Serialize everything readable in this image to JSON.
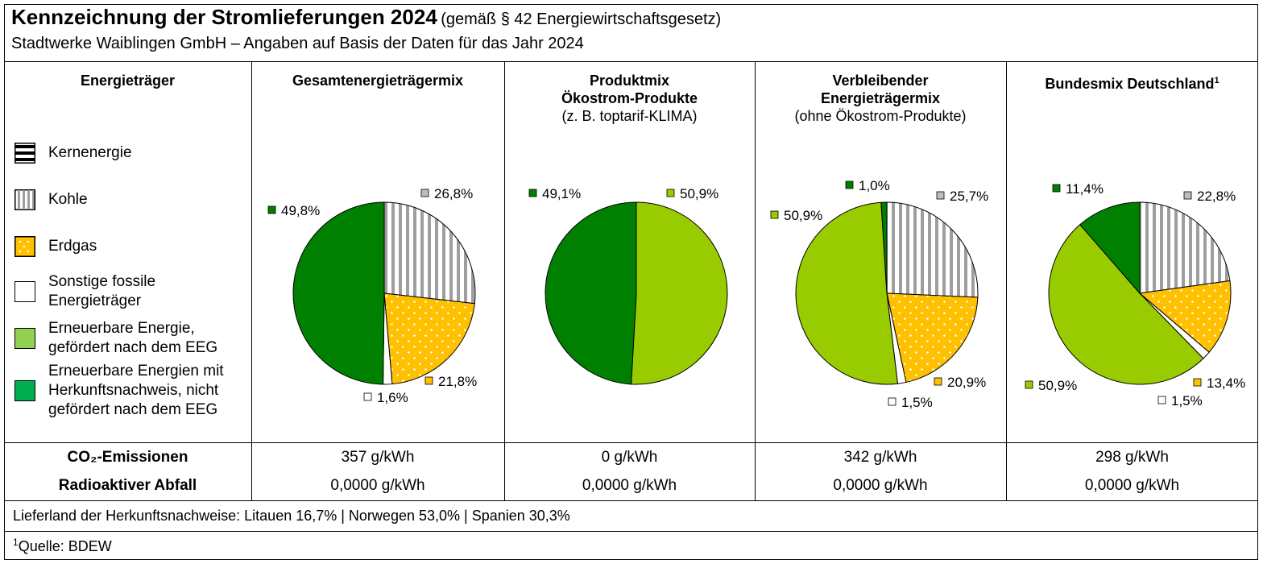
{
  "title": "Kennzeichnung der Stromlieferungen 2024",
  "title_note": "(gemäß § 42 Energiewirtschaftsgesetz)",
  "subtitle": "Stadtwerke Waiblingen GmbH – Angaben auf Basis der Daten für das Jahr 2024",
  "legend_header": "Energieträger",
  "legend": [
    {
      "label": "Kernenergie",
      "pattern": "horizontal-stripes",
      "color": "#000000"
    },
    {
      "label": "Kohle",
      "pattern": "vertical-stripes",
      "color": "#9e9e9e"
    },
    {
      "label": "Erdgas",
      "pattern": "dots",
      "color": "#ffc000"
    },
    {
      "label": "Sonstige fossile Energieträger",
      "pattern": "solid",
      "color": "#ffffff"
    },
    {
      "label": "Erneuerbare Energie, gefördert nach dem EEG",
      "pattern": "solid",
      "color": "#99cc00"
    },
    {
      "label": "Erneuerbare Energien mit Herkunftsnachweis, nicht gefördert nach dem EEG",
      "pattern": "solid",
      "color": "#008000"
    }
  ],
  "columns": [
    {
      "line1": "Gesamtenergieträgermix",
      "line2": "",
      "line3": "",
      "co2": "357 g/kWh",
      "waste": "0,0000 g/kWh"
    },
    {
      "line1": "Produktmix",
      "line2": "Ökostrom-Produkte",
      "line3": "(z. B. toptarif-KLIMA)",
      "co2": "0 g/kWh",
      "waste": "0,0000 g/kWh"
    },
    {
      "line1": "Verbleibender",
      "line2": "Energieträgermix",
      "line3": "(ohne Ökostrom-Produkte)",
      "co2": "342 g/kWh",
      "waste": "0,0000 g/kWh"
    },
    {
      "line1": "Bundesmix Deutschland",
      "line1_sup": "1",
      "line2": "",
      "line3": "",
      "co2": "298 g/kWh",
      "waste": "0,0000 g/kWh"
    }
  ],
  "row_labels": {
    "co2": "CO₂-Emissionen",
    "waste": "Radioaktiver Abfall"
  },
  "origin_note": "Lieferland der Herkunftsnachweise: Litauen 16,7% | Norwegen 53,0% | Spanien 30,3%",
  "source_sup": "1",
  "source_note": "Quelle: BDEW",
  "chart_data": [
    {
      "type": "pie",
      "title": "Gesamtenergieträgermix",
      "slices": [
        {
          "category": "Kohle",
          "value": 26.8,
          "label": "26,8%"
        },
        {
          "category": "Erdgas",
          "value": 21.8,
          "label": "21,8%"
        },
        {
          "category": "Sonstige fossile Energieträger",
          "value": 1.6,
          "label": "1,6%"
        },
        {
          "category": "Erneuerbare Energien mit Herkunftsnachweis, nicht gefördert nach dem EEG",
          "value": 49.8,
          "label": "49,8%"
        }
      ]
    },
    {
      "type": "pie",
      "title": "Produktmix Ökostrom-Produkte",
      "slices": [
        {
          "category": "Erneuerbare Energie, gefördert nach dem EEG",
          "value": 50.9,
          "label": "50,9%"
        },
        {
          "category": "Erneuerbare Energien mit Herkunftsnachweis, nicht gefördert nach dem EEG",
          "value": 49.1,
          "label": "49,1%"
        }
      ]
    },
    {
      "type": "pie",
      "title": "Verbleibender Energieträgermix",
      "slices": [
        {
          "category": "Kohle",
          "value": 25.7,
          "label": "25,7%"
        },
        {
          "category": "Erdgas",
          "value": 20.9,
          "label": "20,9%"
        },
        {
          "category": "Sonstige fossile Energieträger",
          "value": 1.5,
          "label": "1,5%"
        },
        {
          "category": "Erneuerbare Energie, gefördert nach dem EEG",
          "value": 50.9,
          "label": "50,9%"
        },
        {
          "category": "Erneuerbare Energien mit Herkunftsnachweis, nicht gefördert nach dem EEG",
          "value": 1.0,
          "label": "1,0%"
        }
      ]
    },
    {
      "type": "pie",
      "title": "Bundesmix Deutschland",
      "slices": [
        {
          "category": "Kohle",
          "value": 22.8,
          "label": "22,8%"
        },
        {
          "category": "Erdgas",
          "value": 13.4,
          "label": "13,4%"
        },
        {
          "category": "Sonstige fossile Energieträger",
          "value": 1.5,
          "label": "1,5%"
        },
        {
          "category": "Erneuerbare Energie, gefördert nach dem EEG",
          "value": 50.9,
          "label": "50,9%"
        },
        {
          "category": "Erneuerbare Energien mit Herkunftsnachweis, nicht gefördert nach dem EEG",
          "value": 11.4,
          "label": "11,4%"
        }
      ]
    }
  ]
}
